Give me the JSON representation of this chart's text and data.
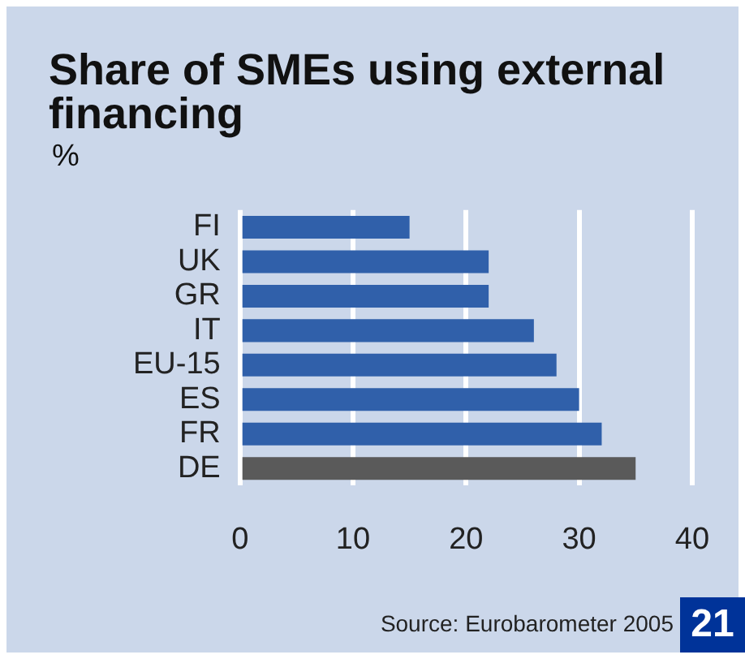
{
  "chart_data": {
    "type": "bar",
    "orientation": "horizontal",
    "title": "Share of SMEs using external financing",
    "ylabel": "%",
    "categories": [
      "FI",
      "UK",
      "GR",
      "IT",
      "EU-15",
      "ES",
      "FR",
      "DE"
    ],
    "values": [
      15,
      22,
      22,
      26,
      28,
      30,
      32,
      35
    ],
    "colors": [
      "#3060aa",
      "#3060aa",
      "#3060aa",
      "#3060aa",
      "#3060aa",
      "#3060aa",
      "#3060aa",
      "#5a5a5a"
    ],
    "xlim": [
      0,
      40
    ],
    "xticks": [
      0,
      10,
      20,
      30,
      40
    ],
    "grid": "x",
    "legend": false,
    "annotations": [
      "Source: Eurobarometer 2005",
      "21"
    ]
  }
}
